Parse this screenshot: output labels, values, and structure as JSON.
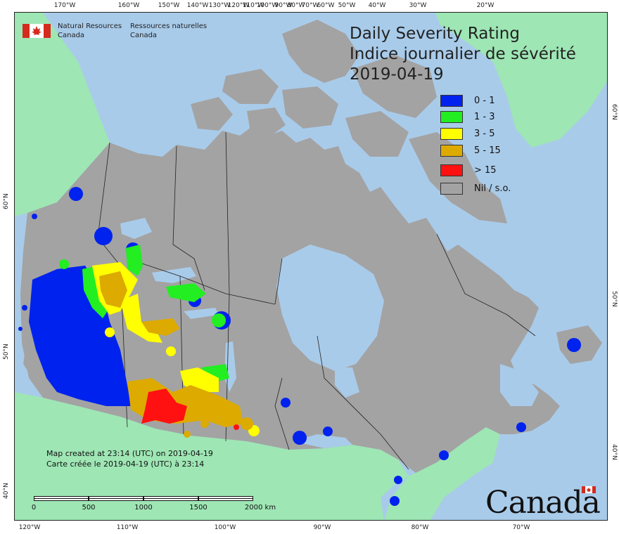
{
  "title": {
    "en": "Daily Severity Rating",
    "fr": "Indice journalier de sévérité",
    "date": "2019-04-19"
  },
  "agency": {
    "en_line1": "Natural Resources",
    "en_line2": "Canada",
    "fr_line1": "Ressources naturelles",
    "fr_line2": "Canada",
    "flag_icon": "canada-flag-icon"
  },
  "legend": [
    {
      "label": "0 - 1",
      "color": "#0022ee"
    },
    {
      "label": "1 - 3",
      "color": "#22ee22"
    },
    {
      "label": "3 - 5",
      "color": "#ffff00"
    },
    {
      "label": "5 - 15",
      "color": "#ddaa00"
    },
    {
      "label": "> 15",
      "color": "#ff1111"
    },
    {
      "label": "Nil / s.o.",
      "color": "#a3a3a3"
    }
  ],
  "axes": {
    "top_longitudes": [
      "170°W",
      "160°W",
      "150°W",
      "140°W",
      "130°W",
      "120°W",
      "110°W",
      "100°W",
      "90°W",
      "80°W",
      "70°W",
      "60°W",
      "50°W",
      "40°W",
      "30°W",
      "20°W"
    ],
    "bottom_longitudes": [
      "120°W",
      "110°W",
      "100°W",
      "90°W",
      "80°W",
      "70°W"
    ],
    "left_latitudes": [
      "60°N",
      "50°N",
      "40°N"
    ],
    "right_latitudes": [
      "60°N",
      "50°N",
      "40°N"
    ]
  },
  "footer": {
    "created_en": "Map created at 23:14 (UTC) on 2019-04-19",
    "created_fr": "Carte créée le 2019-04-19 (UTC) à 23:14"
  },
  "scale_bar": {
    "labels": [
      "0",
      "500",
      "1000",
      "1500",
      "2000 km"
    ]
  },
  "wordmark": "Canada",
  "colors": {
    "ocean": "#a9cbea",
    "other_land": "#9ee6b4",
    "canada_land": "#a3a3a3",
    "lake": "#a9cbea"
  }
}
